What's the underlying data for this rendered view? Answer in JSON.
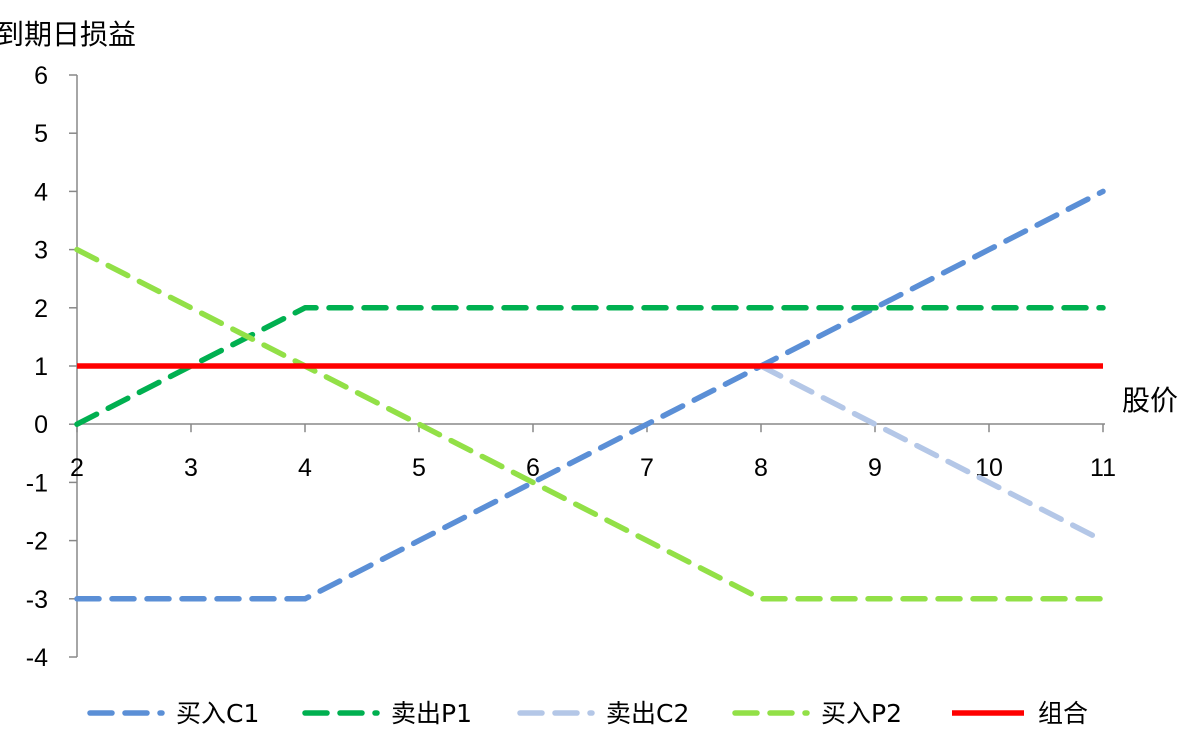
{
  "chart_data": {
    "type": "line",
    "ylabel": "到期日损益",
    "xlabel": "股价",
    "xlim": [
      2,
      11
    ],
    "ylim": [
      -4,
      6
    ],
    "x_ticks": [
      "2",
      "3",
      "4",
      "5",
      "6",
      "7",
      "8",
      "9",
      "10",
      "11"
    ],
    "y_ticks": [
      "6",
      "5",
      "4",
      "3",
      "2",
      "1",
      "0",
      "-1",
      "-2",
      "-3",
      "-4"
    ],
    "grid": false,
    "legend_position": "bottom",
    "series": [
      {
        "name": "买入C1",
        "color": "#5B8FD6",
        "style": "dashed",
        "x": [
          2,
          3,
          4,
          5,
          6,
          7,
          8,
          9,
          10,
          11
        ],
        "y": [
          -3,
          -3,
          -3,
          -2,
          -1,
          0,
          1,
          2,
          3,
          4
        ]
      },
      {
        "name": "卖出P1",
        "color": "#00B050",
        "style": "dashed",
        "x": [
          2,
          3,
          4,
          5,
          6,
          7,
          8,
          9,
          10,
          11
        ],
        "y": [
          0,
          1,
          2,
          2,
          2,
          2,
          2,
          2,
          2,
          2
        ]
      },
      {
        "name": "卖出C2",
        "color": "#B4C7E7",
        "style": "dashed",
        "x": [
          8,
          9,
          10,
          11
        ],
        "y": [
          1,
          0,
          -1,
          -2
        ]
      },
      {
        "name": "买入P2",
        "color": "#92E047",
        "style": "dashed",
        "x": [
          2,
          3,
          4,
          5,
          6,
          7,
          8,
          9,
          10,
          11
        ],
        "y": [
          3,
          2,
          1,
          0,
          -1,
          -2,
          -3,
          -3,
          -3,
          -3
        ]
      },
      {
        "name": "组合",
        "color": "#FF0000",
        "style": "solid",
        "x": [
          2,
          3,
          4,
          5,
          6,
          7,
          8,
          9,
          10,
          11
        ],
        "y": [
          1,
          1,
          1,
          1,
          1,
          1,
          1,
          1,
          1,
          1
        ]
      }
    ]
  }
}
